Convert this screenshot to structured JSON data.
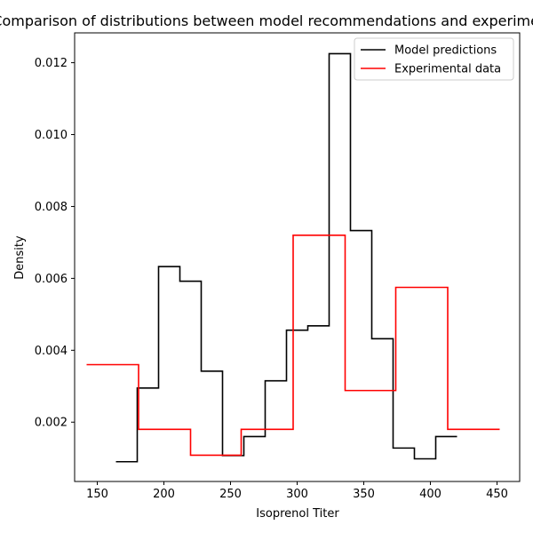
{
  "chart_data": {
    "type": "line",
    "title": "Comparison of distributions between model recommendations and experimental data",
    "xlabel": "Isoprenol Titer",
    "ylabel": "Density",
    "xlim": [
      133,
      467
    ],
    "ylim": [
      0.00035,
      0.01283
    ],
    "xticks": [
      150,
      200,
      250,
      300,
      350,
      400,
      450
    ],
    "yticks": [
      0.002,
      0.004,
      0.006,
      0.008,
      0.01,
      0.012
    ],
    "xtick_labels": [
      "150",
      "200",
      "250",
      "300",
      "350",
      "400",
      "450"
    ],
    "ytick_labels": [
      "0.002",
      "0.004",
      "0.006",
      "0.008",
      "0.010",
      "0.012"
    ],
    "legend_position": "top-right",
    "grid": false,
    "series": [
      {
        "name": "Model predictions",
        "color": "#000000",
        "step": "post",
        "x": [
          164,
          180,
          196,
          212,
          228,
          244,
          260,
          276,
          292,
          308,
          324,
          340,
          356,
          372,
          388,
          404,
          420
        ],
        "y": [
          0.0009,
          0.00295,
          0.00633,
          0.00592,
          0.00342,
          0.00107,
          0.0016,
          0.00315,
          0.00456,
          0.00468,
          0.01225,
          0.00733,
          0.00432,
          0.00128,
          0.00098,
          0.0016,
          0.0016
        ]
      },
      {
        "name": "Experimental data",
        "color": "#ff0000",
        "step": "post",
        "x": [
          142,
          181,
          220,
          258,
          297,
          336,
          374,
          413,
          452
        ],
        "y": [
          0.0036,
          0.0018,
          0.00108,
          0.0018,
          0.0072,
          0.00288,
          0.00575,
          0.0018,
          0.0018
        ]
      }
    ]
  }
}
